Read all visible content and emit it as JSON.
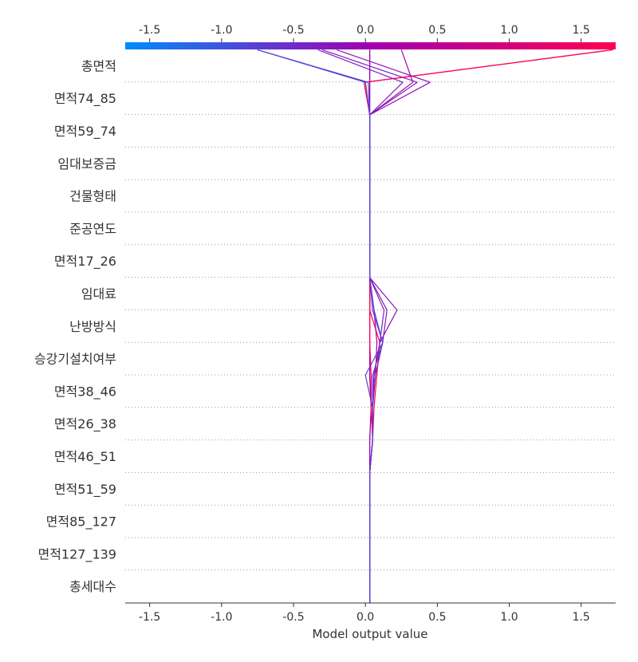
{
  "chart_data": {
    "type": "decision_plot",
    "xlabel": "Model output value",
    "xlim": [
      -1.67,
      1.74
    ],
    "x_ticks": [
      -1.5,
      -1.0,
      -0.5,
      0.0,
      0.5,
      1.0,
      1.5
    ],
    "x_tick_labels": [
      "-1.5",
      "-1.0",
      "-0.5",
      "0.0",
      "0.5",
      "1.0",
      "1.5"
    ],
    "base_value": 0.03,
    "features": [
      "총면적",
      "면적74_85",
      "면적59_74",
      "임대보증금",
      "건물형태",
      "준공연도",
      "면적17_26",
      "임대료",
      "난방방식",
      "승강기설치여부",
      "면적38_46",
      "면적26_38",
      "면적46_51",
      "면적51_59",
      "면적85_127",
      "면적127_139",
      "총세대수"
    ],
    "colorbar": {
      "min_color": "#008bfb",
      "mid_color": "#a100b0",
      "max_color": "#ff0052"
    },
    "series": [
      {
        "values": [
          0.03,
          0.03,
          0.03,
          0.03,
          0.03,
          0.03,
          0.04,
          0.03,
          0.03,
          0.03,
          0.03,
          0.03,
          0.03,
          0.03,
          0.03,
          0.03,
          0.03,
          0.03
        ]
      },
      {
        "values": [
          0.03,
          0.03,
          0.03,
          0.03,
          0.03,
          0.03,
          0.04,
          0.03,
          0.03,
          0.03,
          0.03,
          0.03,
          0.03,
          0.03,
          0.03,
          0.03,
          0.03,
          0.03
        ]
      },
      {
        "values": [
          0.03,
          0.03,
          0.03,
          0.03,
          0.03,
          0.05,
          0.04,
          0.04,
          0.03,
          0.03,
          0.03,
          0.03,
          0.03,
          0.03,
          0.03,
          0.03,
          -0.01,
          1.72
        ]
      },
      {
        "values": [
          0.03,
          0.03,
          0.03,
          0.03,
          0.03,
          0.05,
          0.06,
          0.08,
          0.1,
          0.03,
          0.03,
          0.03,
          0.03,
          0.03,
          0.03,
          0.03,
          0.0,
          1.72
        ]
      },
      {
        "values": [
          0.03,
          0.03,
          0.03,
          0.03,
          0.03,
          0.05,
          0.05,
          0.07,
          0.08,
          0.06,
          0.03,
          0.03,
          0.03,
          0.03,
          0.03,
          0.03,
          0.33,
          0.25
        ]
      },
      {
        "values": [
          0.03,
          0.03,
          0.03,
          0.03,
          0.03,
          0.05,
          0.05,
          0.07,
          0.12,
          0.15,
          0.03,
          0.03,
          0.03,
          0.03,
          0.03,
          0.03,
          0.36,
          -0.3
        ]
      },
      {
        "values": [
          0.03,
          0.03,
          0.03,
          0.03,
          0.03,
          0.05,
          0.05,
          0.06,
          0.1,
          0.22,
          0.03,
          0.03,
          0.03,
          0.03,
          0.03,
          0.03,
          0.45,
          -0.2
        ]
      },
      {
        "values": [
          0.03,
          0.03,
          0.03,
          0.03,
          0.03,
          0.05,
          0.05,
          0.06,
          0.1,
          0.13,
          0.03,
          0.03,
          0.03,
          0.03,
          0.03,
          0.03,
          0.26,
          -0.33
        ]
      },
      {
        "values": [
          0.03,
          0.03,
          0.03,
          0.03,
          0.03,
          0.05,
          0.05,
          0.05,
          0.12,
          0.06,
          0.03,
          0.03,
          0.03,
          0.03,
          0.03,
          0.03,
          0.0,
          -0.75
        ]
      },
      {
        "values": [
          0.03,
          0.03,
          0.03,
          0.03,
          0.03,
          0.05,
          0.05,
          0.0,
          0.12,
          0.05,
          0.03,
          0.03,
          0.03,
          0.03,
          0.03,
          0.03,
          0.02,
          -0.75
        ]
      }
    ]
  }
}
